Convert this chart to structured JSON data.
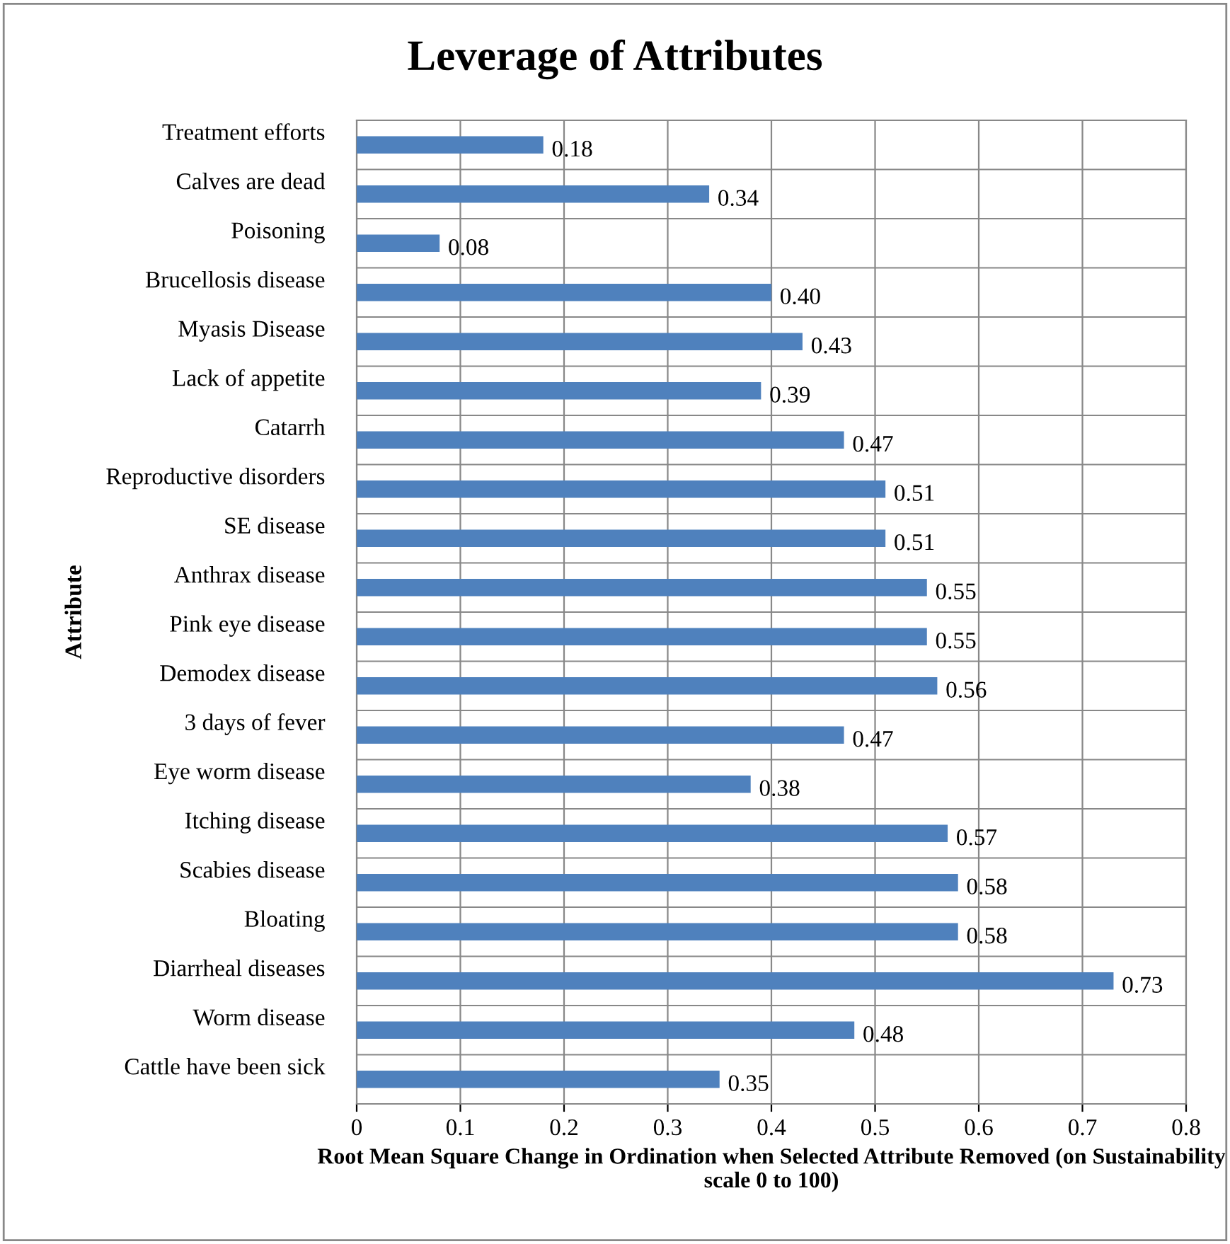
{
  "chart_data": {
    "type": "bar",
    "orientation": "horizontal",
    "title": "Leverage of Attributes",
    "ylabel": "Attribute",
    "xlabel": "Root Mean Square Change in Ordination when Selected Attribute Removed (on Sustainability scale 0 to 100)",
    "categories": [
      "Treatment efforts",
      "Calves are dead",
      "Poisoning",
      "Brucellosis disease",
      "Myasis Disease",
      "Lack of appetite",
      "Catarrh",
      "Reproductive disorders",
      "SE disease",
      "Anthrax disease",
      "Pink eye disease",
      "Demodex disease",
      "3 days of fever",
      "Eye worm disease",
      "Itching disease",
      "Scabies disease",
      "Bloating",
      "Diarrheal diseases",
      "Worm disease",
      "Cattle have been sick"
    ],
    "values": [
      0.18,
      0.34,
      0.08,
      0.4,
      0.43,
      0.39,
      0.47,
      0.51,
      0.51,
      0.55,
      0.55,
      0.56,
      0.47,
      0.38,
      0.57,
      0.58,
      0.58,
      0.73,
      0.48,
      0.35
    ],
    "value_labels": [
      "0.18",
      "0.34",
      "0.08",
      "0.40",
      "0.43",
      "0.39",
      "0.47",
      "0.51",
      "0.51",
      "0.55",
      "0.55",
      "0.56",
      "0.47",
      "0.38",
      "0.57",
      "0.58",
      "0.58",
      "0.73",
      "0.48",
      "0.35"
    ],
    "color": "#4f81bd",
    "xlim": [
      0,
      0.8
    ],
    "xticks": [
      0,
      0.1,
      0.2,
      0.3,
      0.4,
      0.5,
      0.6,
      0.7,
      0.8
    ],
    "grid": true,
    "legend": false
  }
}
